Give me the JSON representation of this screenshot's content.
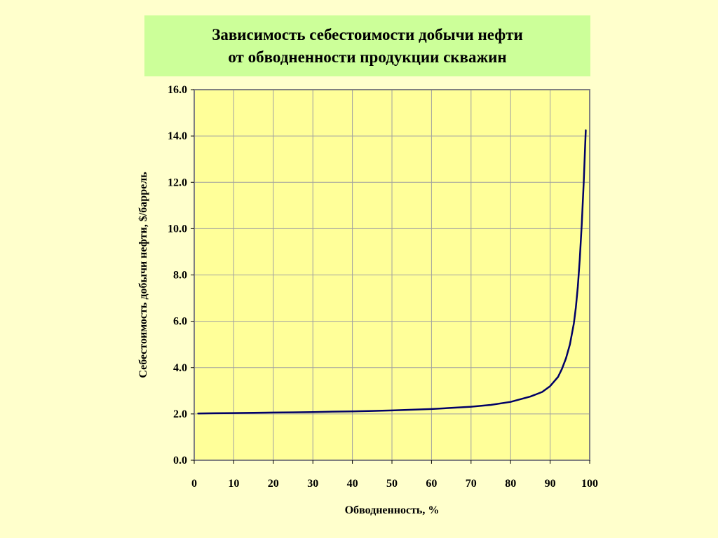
{
  "title": {
    "line1": "Зависимость себестоимости добычи нефти",
    "line2": "от обводненности продукции скважин"
  },
  "colors": {
    "background": "#ffffcc",
    "title_box": "#ccff99",
    "plot_area": "#ffff99",
    "series_line": "#000066",
    "gridline": "#a0a0a0"
  },
  "chart_data": {
    "type": "line",
    "title": "Зависимость себестоимости добычи нефти от обводненности продукции скважин",
    "xlabel": "Обводненность, %",
    "ylabel": "Себестоимость добычи нефти, $/баррель",
    "xlim": [
      0,
      100
    ],
    "ylim": [
      0,
      16
    ],
    "xticks": [
      "0",
      "10",
      "20",
      "30",
      "40",
      "50",
      "60",
      "70",
      "80",
      "90",
      "100"
    ],
    "yticks": [
      "0.0",
      "2.0",
      "4.0",
      "6.0",
      "8.0",
      "10.0",
      "12.0",
      "14.0",
      "16.0"
    ],
    "grid": true,
    "legend": "none",
    "series": [
      {
        "x": [
          1,
          5,
          10,
          15,
          20,
          25,
          30,
          35,
          40,
          45,
          50,
          55,
          60,
          65,
          70,
          75,
          80,
          85,
          88,
          90,
          92,
          93,
          94,
          95,
          96,
          96.5,
          97,
          97.5,
          98,
          98.5,
          99
        ],
        "y": [
          2.02,
          2.03,
          2.04,
          2.05,
          2.06,
          2.07,
          2.08,
          2.1,
          2.11,
          2.13,
          2.15,
          2.18,
          2.21,
          2.26,
          2.31,
          2.39,
          2.52,
          2.75,
          2.95,
          3.2,
          3.6,
          3.95,
          4.4,
          5.0,
          5.9,
          6.6,
          7.5,
          8.7,
          10.2,
          12.0,
          14.25
        ]
      }
    ]
  }
}
